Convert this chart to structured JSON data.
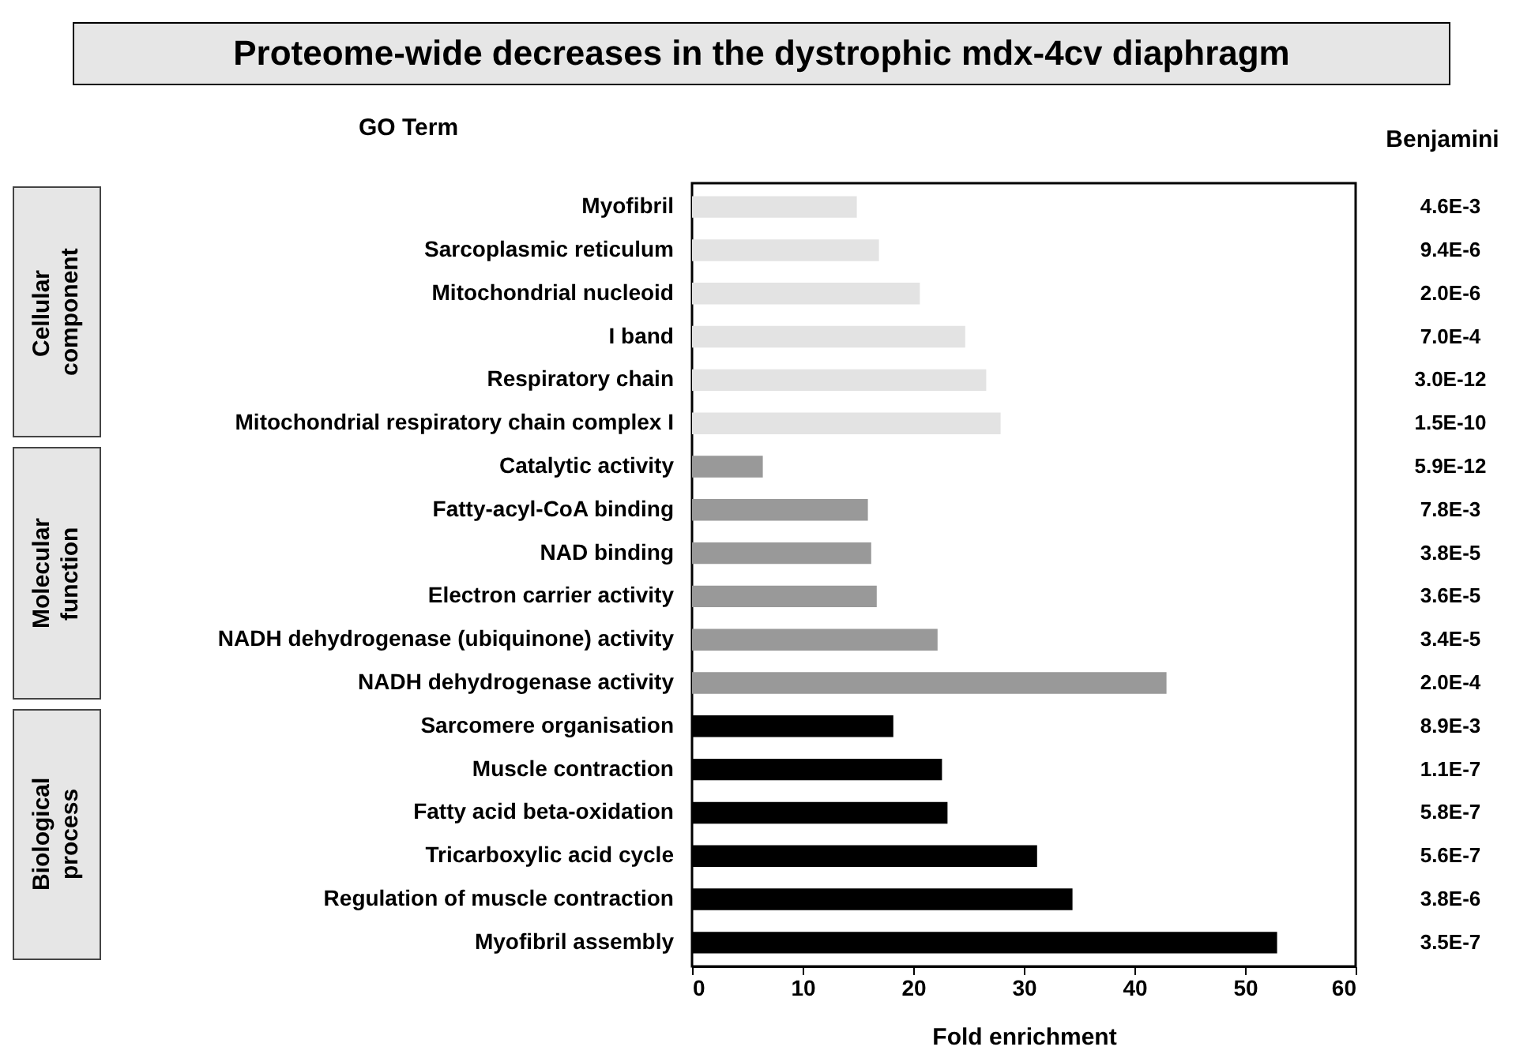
{
  "chart_data": {
    "type": "bar",
    "orientation": "horizontal",
    "title": "Proteome-wide decreases in the dystrophic mdx-4cv diaphragm",
    "xlabel": "Fold enrichment",
    "ylabel": "GO Term",
    "categories": [
      "Myofibril",
      "Sarcoplasmic reticulum",
      "Mitochondrial nucleoid",
      "I band",
      "Respiratory chain",
      "Mitochondrial respiratory chain complex I",
      "Catalytic activity",
      "Fatty-acyl-CoA binding",
      "NAD binding",
      "Electron carrier activity",
      "NADH dehydrogenase (ubiquinone) activity",
      "NADH dehydrogenase activity",
      "Sarcomere organisation",
      "Muscle contraction",
      "Fatty acid beta-oxidation",
      "Tricarboxylic acid cycle",
      "Regulation of muscle contraction",
      "Myofibril assembly"
    ],
    "values": [
      14.9,
      16.9,
      20.6,
      24.7,
      26.6,
      27.9,
      6.4,
      15.9,
      16.2,
      16.7,
      22.2,
      42.9,
      18.2,
      22.6,
      23.1,
      31.2,
      34.4,
      52.9
    ],
    "colors": [
      "#e3e3e3",
      "#e3e3e3",
      "#e3e3e3",
      "#e3e3e3",
      "#e3e3e3",
      "#e3e3e3",
      "#999999",
      "#999999",
      "#999999",
      "#999999",
      "#999999",
      "#999999",
      "#000000",
      "#000000",
      "#000000",
      "#000000",
      "#000000",
      "#000000"
    ],
    "xlim": [
      0,
      60
    ],
    "xticks": [
      0,
      10,
      20,
      30,
      40,
      50,
      60
    ],
    "grid": false,
    "annotations": [
      "Benjamini",
      "Cellular component",
      "Molecular function",
      "Biological process",
      "4.6E-3",
      "9.4E-6",
      "2.0E-6",
      "7.0E-4",
      "3.0E-12",
      "1.5E-10",
      "5.9E-12",
      "7.8E-3",
      "3.8E-5",
      "3.6E-5",
      "3.4E-5",
      "2.0E-4",
      "8.9E-3",
      "1.1E-7",
      "5.8E-7",
      "5.6E-7",
      "3.8E-6",
      "3.5E-7"
    ]
  }
}
